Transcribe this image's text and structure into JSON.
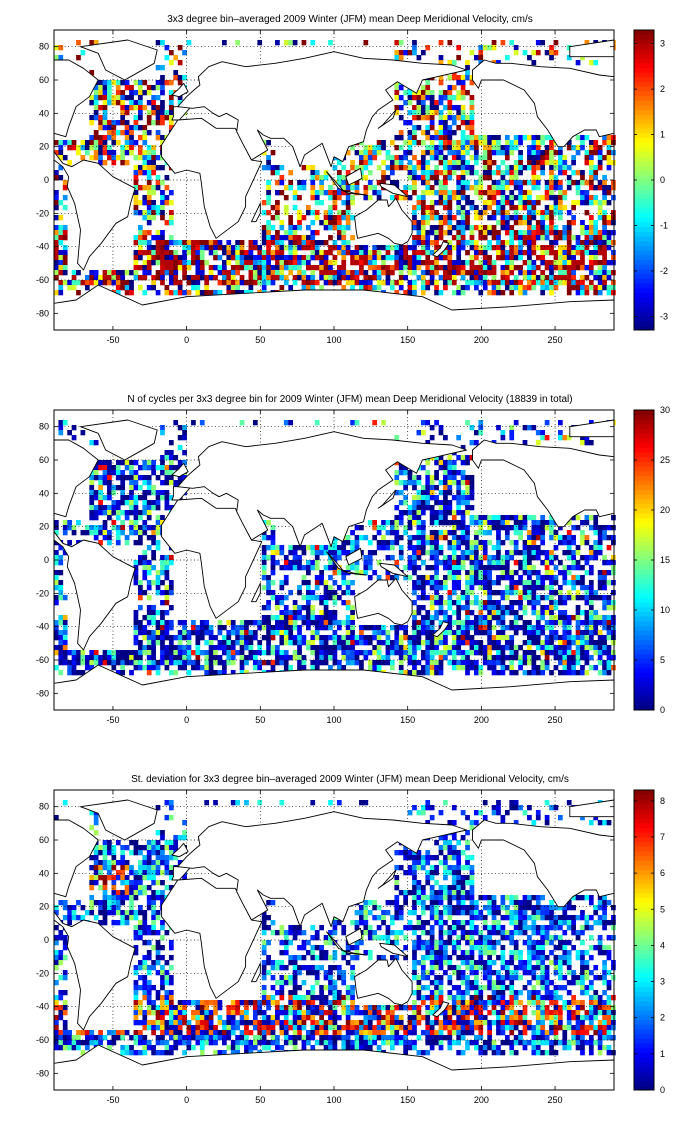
{
  "figure": {
    "x_ticks": [
      -50,
      0,
      50,
      100,
      150,
      200,
      250
    ],
    "y_ticks": [
      80,
      60,
      40,
      20,
      0,
      -20,
      -40,
      -60,
      -80
    ],
    "x_range": [
      -90,
      290
    ],
    "y_range": [
      -90,
      90
    ]
  },
  "chart_data": [
    {
      "type": "heatmap",
      "title": "3x3 degree bin–averaged 2009 Winter (JFM) mean Deep Meridional Velocity, cm/s",
      "xlabel": "",
      "ylabel": "",
      "xlim": [
        -90,
        290
      ],
      "ylim": [
        -90,
        90
      ],
      "x_ticks": [
        -50,
        0,
        50,
        100,
        150,
        200,
        250
      ],
      "y_ticks": [
        80,
        60,
        40,
        20,
        0,
        -20,
        -40,
        -60,
        -80
      ],
      "colorbar": {
        "min": -3.3,
        "max": 3.3,
        "ticks": [
          3,
          2,
          1,
          0,
          -1,
          -2,
          -3
        ]
      },
      "colormap": "jet",
      "bin_size_deg": 3,
      "grid": true
    },
    {
      "type": "heatmap",
      "title": "N of cycles per 3x3 degree bin for 2009 Winter (JFM) mean Deep Meridional Velocity (18839 in total)",
      "xlabel": "",
      "ylabel": "",
      "xlim": [
        -90,
        290
      ],
      "ylim": [
        -90,
        90
      ],
      "x_ticks": [
        -50,
        0,
        50,
        100,
        150,
        200,
        250
      ],
      "y_ticks": [
        80,
        60,
        40,
        20,
        0,
        -20,
        -40,
        -60,
        -80
      ],
      "colorbar": {
        "min": 0,
        "max": 30,
        "ticks": [
          30,
          25,
          20,
          15,
          10,
          5,
          0
        ]
      },
      "colormap": "jet",
      "bin_size_deg": 3,
      "grid": true
    },
    {
      "type": "heatmap",
      "title": "St. deviation for 3x3 degree bin–averaged 2009 Winter (JFM) mean Deep Meridional Velocity, cm/s",
      "xlabel": "",
      "ylabel": "",
      "xlim": [
        -90,
        290
      ],
      "ylim": [
        -90,
        90
      ],
      "x_ticks": [
        -50,
        0,
        50,
        100,
        150,
        200,
        250
      ],
      "y_ticks": [
        80,
        60,
        40,
        20,
        0,
        -20,
        -40,
        -60,
        -80
      ],
      "colorbar": {
        "min": 0,
        "max": 8.3,
        "ticks": [
          8,
          7,
          6,
          5,
          4,
          3,
          2,
          1,
          0
        ]
      },
      "colormap": "jet",
      "bin_size_deg": 3,
      "grid": true
    }
  ]
}
